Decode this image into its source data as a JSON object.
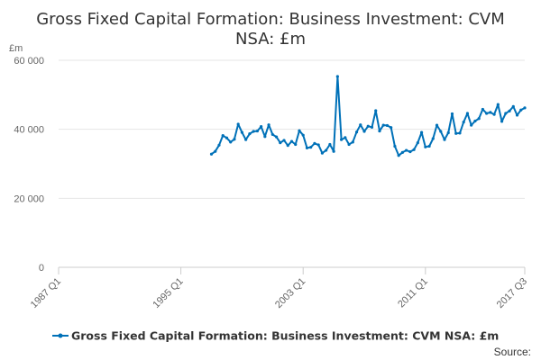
{
  "chart_data": {
    "type": "line",
    "title_lines": [
      "Gross Fixed Capital Formation: Business Investment: CVM",
      "NSA: £m"
    ],
    "ylabel": "£m",
    "ylim": [
      0,
      60000
    ],
    "yticks": [
      0,
      20000,
      40000,
      60000
    ],
    "ytick_labels": [
      "0",
      "20 000",
      "40 000",
      "60 000"
    ],
    "xlim": [
      1987.0,
      2017.5
    ],
    "xticks": [
      1987.0,
      1995.0,
      2003.0,
      2011.0,
      2017.5
    ],
    "xtick_labels": [
      "1987 Q1",
      "1995 Q1",
      "2003 Q1",
      "2011 Q1",
      "2017 Q3"
    ],
    "grid": "horizontal",
    "legend_position": "bottom",
    "source_label": "Source:",
    "color": "#0071b8",
    "series": [
      {
        "name": "Gross Fixed Capital Formation: Business Investment: CVM NSA: £m",
        "x": [
          1997.0,
          1997.25,
          1997.5,
          1997.75,
          1998.0,
          1998.25,
          1998.5,
          1998.75,
          1999.0,
          1999.25,
          1999.5,
          1999.75,
          2000.0,
          2000.25,
          2000.5,
          2000.75,
          2001.0,
          2001.25,
          2001.5,
          2001.75,
          2002.0,
          2002.25,
          2002.5,
          2002.75,
          2003.0,
          2003.25,
          2003.5,
          2003.75,
          2004.0,
          2004.25,
          2004.5,
          2004.75,
          2005.0,
          2005.25,
          2005.5,
          2005.75,
          2006.0,
          2006.25,
          2006.5,
          2006.75,
          2007.0,
          2007.25,
          2007.5,
          2007.75,
          2008.0,
          2008.25,
          2008.5,
          2008.75,
          2009.0,
          2009.25,
          2009.5,
          2009.75,
          2010.0,
          2010.25,
          2010.5,
          2010.75,
          2011.0,
          2011.25,
          2011.5,
          2011.75,
          2012.0,
          2012.25,
          2012.5,
          2012.75,
          2013.0,
          2013.25,
          2013.5,
          2013.75,
          2014.0,
          2014.25,
          2014.5,
          2014.75,
          2015.0,
          2015.25,
          2015.5,
          2015.75,
          2016.0,
          2016.25,
          2016.5,
          2016.75,
          2017.0,
          2017.25,
          2017.5
        ],
        "values": [
          32800,
          33600,
          35400,
          38200,
          37500,
          36300,
          37100,
          41500,
          39100,
          37000,
          38700,
          39400,
          39500,
          40800,
          37900,
          41300,
          38500,
          37800,
          36100,
          36800,
          35300,
          36500,
          35600,
          39600,
          38300,
          34600,
          34800,
          35900,
          35500,
          33100,
          33900,
          35600,
          33600,
          55300,
          37000,
          37600,
          35600,
          36300,
          39200,
          41300,
          39400,
          40900,
          40600,
          45400,
          39500,
          41200,
          41100,
          40500,
          35100,
          32400,
          33300,
          33900,
          33500,
          34100,
          36100,
          39100,
          34900,
          35100,
          37300,
          41200,
          39400,
          37000,
          39000,
          44500,
          38800,
          38900,
          42100,
          44600,
          41200,
          42400,
          43100,
          45800,
          44600,
          44900,
          44300,
          47200,
          42300,
          44600,
          45300,
          46600,
          44100,
          45600,
          46200
        ]
      }
    ]
  }
}
